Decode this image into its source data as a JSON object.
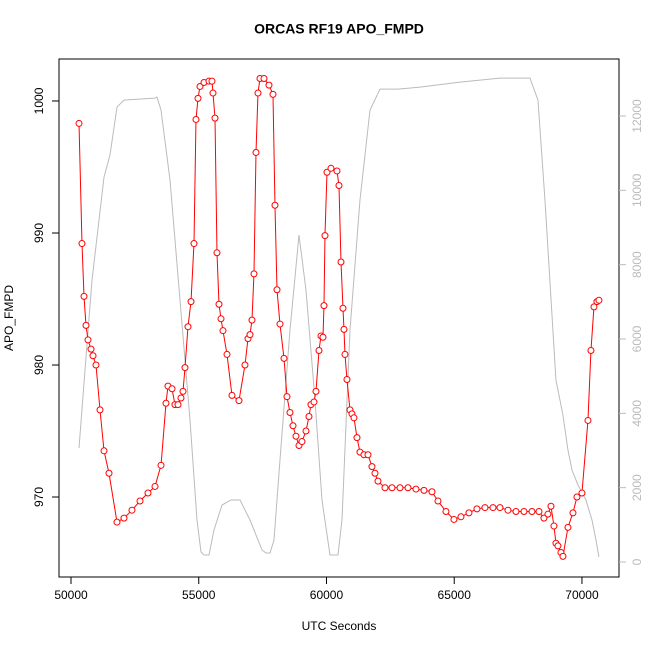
{
  "chart_data": {
    "type": "line",
    "title": "ORCAS RF19 APO_FMPD",
    "x_label": "UTC Seconds",
    "y_label": "APO_FMPD",
    "xlim": [
      49530,
      71450
    ],
    "ylim": [
      963.94,
      1003.18
    ],
    "y2lim": [
      -404,
      13534
    ],
    "xticks": [
      50000,
      55000,
      60000,
      65000,
      70000
    ],
    "yticks": [
      970,
      980,
      990,
      1000
    ],
    "y2ticks": [
      0,
      2000,
      4000,
      6000,
      8000,
      10000,
      12000
    ],
    "y2_color": "#bbbbbb",
    "series": [
      {
        "color": "#ff0000",
        "marker": "circle",
        "x": [
          50313,
          50430,
          50509,
          50587,
          50665,
          50783,
          50861,
          50978,
          51135,
          51292,
          51487,
          51800,
          52074,
          52387,
          52701,
          53014,
          53288,
          53523,
          53718,
          53796,
          53953,
          54070,
          54188,
          54305,
          54384,
          54462,
          54579,
          54697,
          54814,
          54892,
          54971,
          55049,
          55205,
          55401,
          55518,
          55558,
          55636,
          55714,
          55793,
          55871,
          55949,
          56106,
          56301,
          56575,
          56810,
          56928,
          57006,
          57084,
          57162,
          57241,
          57319,
          57397,
          57554,
          57749,
          57906,
          57984,
          58063,
          58180,
          58337,
          58454,
          58571,
          58689,
          58806,
          58924,
          59041,
          59198,
          59315,
          59393,
          59511,
          59589,
          59707,
          59785,
          59863,
          59902,
          59941,
          60020,
          60176,
          60411,
          60489,
          60568,
          60646,
          60685,
          60724,
          60802,
          60920,
          60998,
          61076,
          61194,
          61311,
          61468,
          61624,
          61781,
          61898,
          62016,
          62290,
          62564,
          62877,
          63190,
          63503,
          63816,
          64129,
          64364,
          64677,
          64990,
          65264,
          65577,
          65890,
          66204,
          66517,
          66791,
          67104,
          67417,
          67730,
          68043,
          68317,
          68513,
          68669,
          68787,
          68904,
          68982,
          69061,
          69178,
          69256,
          69452,
          69648,
          69804,
          70000,
          70235,
          70352,
          70470,
          70587,
          70665
        ],
        "values": [
          998.3,
          989.2,
          985.2,
          983.0,
          981.9,
          981.2,
          980.7,
          980.0,
          976.6,
          973.5,
          971.8,
          968.1,
          968.4,
          969.0,
          969.7,
          970.3,
          970.8,
          972.4,
          977.1,
          978.4,
          978.2,
          977.0,
          977.0,
          977.5,
          978.0,
          979.8,
          982.9,
          984.8,
          989.2,
          998.6,
          1000.2,
          1001.1,
          1001.4,
          1001.5,
          1001.5,
          1000.6,
          998.7,
          988.5,
          984.6,
          983.5,
          982.6,
          980.8,
          977.7,
          977.3,
          980.0,
          982.0,
          982.3,
          983.4,
          986.9,
          996.1,
          1000.6,
          1001.7,
          1001.7,
          1001.2,
          1000.5,
          992.1,
          985.7,
          983.1,
          980.5,
          977.6,
          976.4,
          975.4,
          974.6,
          973.9,
          974.2,
          975.0,
          976.1,
          977.0,
          977.2,
          978.0,
          981.1,
          982.2,
          982.1,
          984.5,
          989.8,
          994.6,
          994.9,
          994.7,
          993.6,
          987.8,
          984.3,
          982.7,
          980.8,
          978.9,
          976.6,
          976.3,
          976.0,
          974.5,
          973.4,
          973.2,
          973.2,
          972.3,
          971.8,
          971.2,
          970.7,
          970.7,
          970.7,
          970.7,
          970.6,
          970.5,
          970.4,
          969.7,
          968.9,
          968.3,
          968.5,
          968.8,
          969.1,
          969.2,
          969.2,
          969.2,
          969.0,
          968.9,
          968.9,
          968.9,
          968.9,
          968.4,
          968.7,
          969.3,
          967.8,
          966.5,
          966.3,
          965.8,
          965.5,
          967.7,
          968.8,
          970.0,
          970.3,
          975.8,
          981.1,
          984.4,
          984.8,
          984.9
        ]
      },
      {
        "color": "#bbbbbb",
        "axis": "y2",
        "x": [
          50313,
          50548,
          50822,
          51292,
          51526,
          51800,
          52074,
          53288,
          53366,
          53523,
          53875,
          54266,
          54658,
          54931,
          55088,
          55205,
          55401,
          55518,
          55597,
          55910,
          56262,
          56615,
          57006,
          57319,
          57476,
          57632,
          57789,
          57945,
          58180,
          58571,
          58924,
          59198,
          59550,
          59824,
          60137,
          60450,
          60607,
          60920,
          61311,
          61703,
          62094,
          62799,
          63660,
          65225,
          66791,
          67965,
          68278,
          68552,
          68982,
          69256,
          69452,
          69609,
          69844,
          70157,
          70392,
          70548,
          70665
        ],
        "values": [
          3067,
          5165,
          7586,
          10358,
          10950,
          12241,
          12428,
          12482,
          12509,
          12159,
          10276,
          7048,
          3820,
          1130,
          269,
          188,
          188,
          592,
          861,
          1533,
          1668,
          1668,
          1130,
          592,
          323,
          242,
          242,
          592,
          2744,
          6241,
          8797,
          7317,
          4358,
          1668,
          188,
          188,
          1130,
          6241,
          9738,
          12159,
          12724,
          12724,
          12778,
          12912,
          13019,
          13019,
          12428,
          9738,
          4896,
          3954,
          3013,
          2475,
          2072,
          1668,
          1130,
          592,
          134
        ]
      }
    ]
  }
}
